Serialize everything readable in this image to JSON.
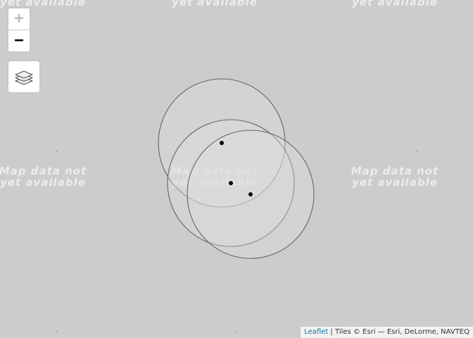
{
  "tiles": {
    "unavailable_text": "Map data not\nyet available",
    "top_row_text": "yet available"
  },
  "controls": {
    "zoom_in_label": "+",
    "zoom_out_label": "−",
    "layers_icon": "layers-icon"
  },
  "attribution": {
    "leaflet_link": "Leaflet",
    "separator": " | ",
    "tiles_text": "Tiles © Esri — Esri, DeLorme, NAVTEQ"
  },
  "colors": {
    "background": "#cccccc",
    "circle_stroke": "#666666",
    "circle_fill": "#e0e0e0",
    "marker": "#000000",
    "link": "#0078a8"
  }
}
